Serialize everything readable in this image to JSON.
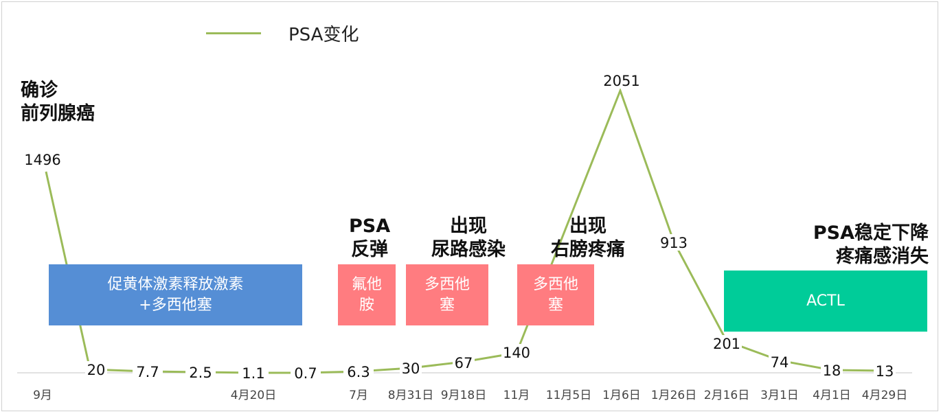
{
  "chart_data": {
    "type": "line",
    "legend": {
      "series_name": "PSA变化",
      "color": "#9bbb59",
      "placement": "top-left"
    },
    "categories": [
      "9月",
      "",
      "4月20日",
      "",
      "7月",
      "8月31日",
      "9月18日",
      "11月",
      "11月5日",
      "1月6日",
      "1月26日",
      "2月16日",
      "3月1日",
      "4月1日",
      "4月29日"
    ],
    "series": [
      {
        "name": "PSA变化",
        "color": "#9bbb59",
        "points": [
          {
            "x": "9月",
            "label": "1496",
            "value": 1496
          },
          {
            "x": "9月-4月20日",
            "label": "20",
            "value": 20
          },
          {
            "x": "",
            "label": "7.7",
            "value": 7.7
          },
          {
            "x": "",
            "label": "2.5",
            "value": 2.5
          },
          {
            "x": "4月20日",
            "label": "1.1",
            "value": 1.1
          },
          {
            "x": "",
            "label": "0.7",
            "value": 0.7
          },
          {
            "x": "7月",
            "label": "6.3",
            "value": 6.3
          },
          {
            "x": "8月31日",
            "label": "30",
            "value": 30
          },
          {
            "x": "9月18日",
            "label": "67",
            "value": 67
          },
          {
            "x": "11月",
            "label": "140",
            "value": 140
          },
          {
            "x": "1月6日",
            "label": "2051",
            "value": 2051
          },
          {
            "x": "1月26日",
            "label": "913",
            "value": 913
          },
          {
            "x": "2月16日",
            "label": "201",
            "value": 201
          },
          {
            "x": "3月1日",
            "label": "74",
            "value": 74
          },
          {
            "x": "4月1日",
            "label": "18",
            "value": 18
          },
          {
            "x": "4月29日",
            "label": "13",
            "value": 13
          }
        ]
      }
    ],
    "grid": false
  },
  "annotations": {
    "diagnosis": [
      "确诊",
      "前列腺癌"
    ],
    "psa_rebound": [
      "PSA",
      "反弹"
    ],
    "uti": [
      "出现",
      "尿路感染"
    ],
    "pain": [
      "出现",
      "右膀疼痛"
    ],
    "stable": [
      "PSA稳定下降",
      "疼痛感消失"
    ]
  },
  "treatments": {
    "lhrh": [
      "促黄体激素释放激素",
      "+多西他塞"
    ],
    "flutamide": [
      "氟他",
      "胺"
    ],
    "docetaxel1": [
      "多西他",
      "塞"
    ],
    "docetaxel2": [
      "多西他",
      "塞"
    ],
    "actl": [
      "ACTL"
    ]
  },
  "colors": {
    "line": "#9bbb59",
    "treatment_blue": "#558ed5",
    "treatment_pink": "#ff7c80",
    "treatment_green": "#00cc99"
  }
}
